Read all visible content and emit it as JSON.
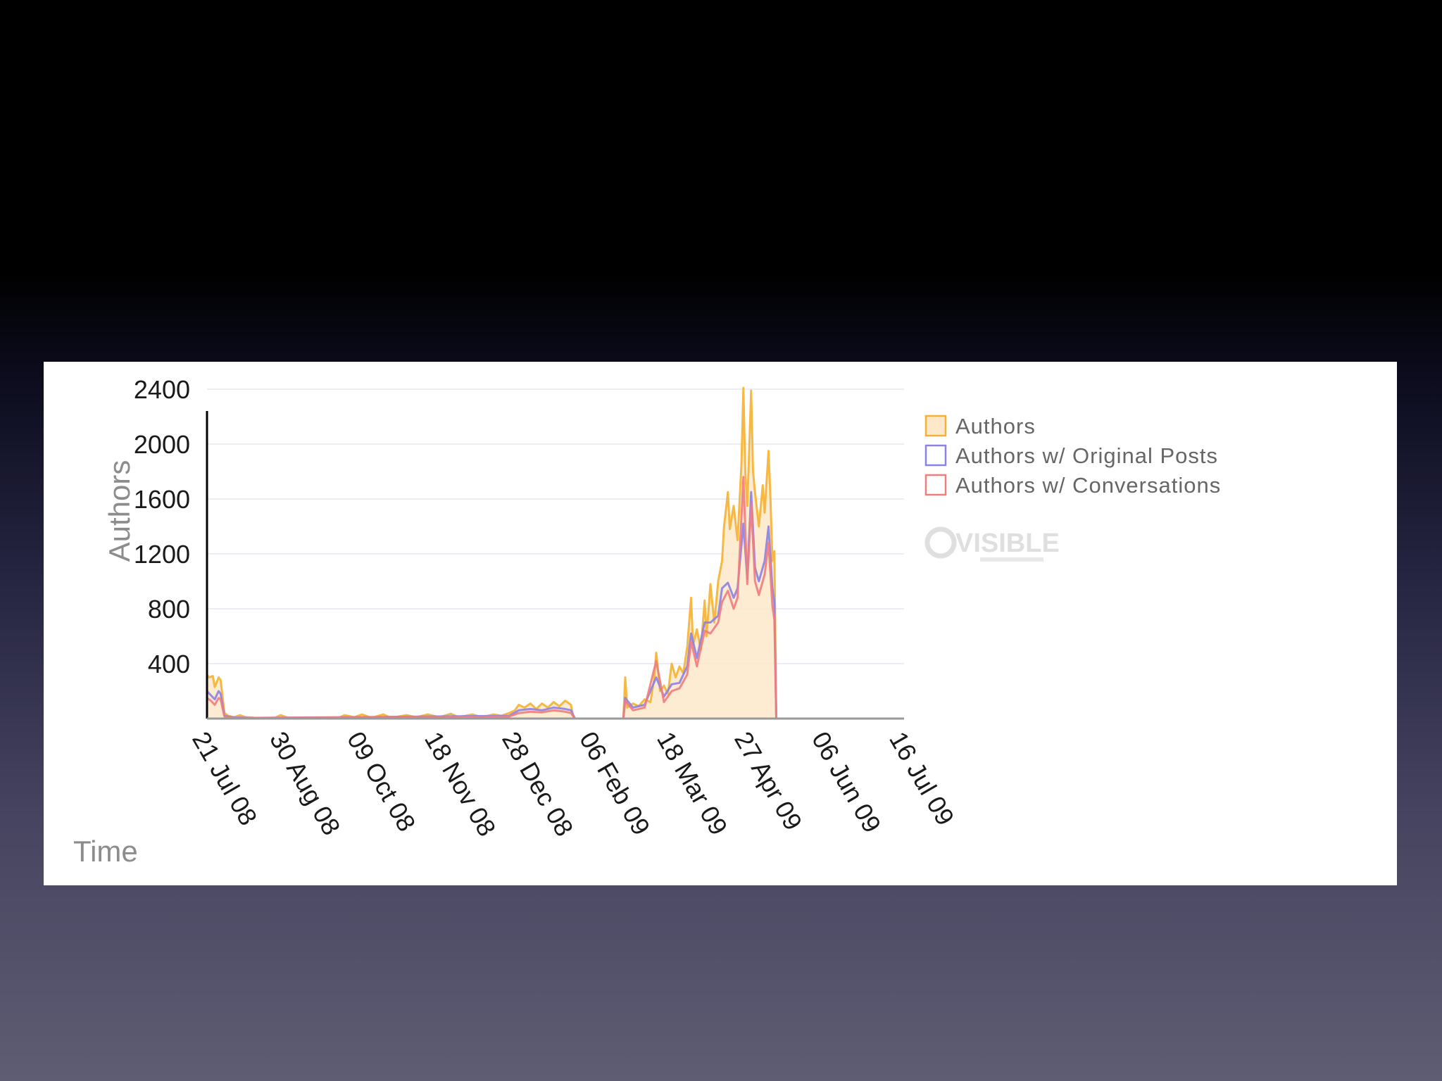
{
  "colors": {
    "authors": "#f5b133",
    "original_posts": "#8b82e8",
    "conversations": "#ef7d7d",
    "area_fill": "#fde9c9",
    "grid": "#ececf4",
    "axis": "#000000"
  },
  "logo": {
    "text": "VISIBLE",
    "icon": "at-sign-icon"
  },
  "chart_data": {
    "type": "line",
    "title": "",
    "xlabel": "Time",
    "ylabel": "Authors",
    "ylim": [
      0,
      2600
    ],
    "yticks": [
      400,
      800,
      1200,
      1600,
      2000,
      2400
    ],
    "xlim": [
      "2008-07-21",
      "2009-07-16"
    ],
    "xticks": [
      {
        "date": "2008-07-21",
        "label": "21 Jul 08"
      },
      {
        "date": "2008-08-30",
        "label": "30 Aug 08"
      },
      {
        "date": "2008-10-09",
        "label": "09 Oct 08"
      },
      {
        "date": "2008-11-18",
        "label": "18 Nov 08"
      },
      {
        "date": "2008-12-28",
        "label": "28 Dec 08"
      },
      {
        "date": "2009-02-06",
        "label": "06 Feb 09"
      },
      {
        "date": "2009-03-18",
        "label": "18 Mar 09"
      },
      {
        "date": "2009-04-27",
        "label": "27 Apr 09"
      },
      {
        "date": "2009-06-06",
        "label": "06 Jun 09"
      },
      {
        "date": "2009-07-16",
        "label": "16 Jul 09"
      }
    ],
    "grid": true,
    "legend_position": "right",
    "series": [
      {
        "name": "Authors",
        "color_key": "authors",
        "area": true,
        "points": [
          [
            "2008-07-21",
            320
          ],
          [
            "2008-07-22",
            300
          ],
          [
            "2008-07-24",
            310
          ],
          [
            "2008-07-25",
            230
          ],
          [
            "2008-07-27",
            300
          ],
          [
            "2008-07-28",
            280
          ],
          [
            "2008-07-30",
            40
          ],
          [
            "2008-08-01",
            20
          ],
          [
            "2008-08-04",
            10
          ],
          [
            "2008-08-07",
            25
          ],
          [
            "2008-08-10",
            10
          ],
          [
            "2008-08-15",
            5
          ],
          [
            "2008-08-25",
            5
          ],
          [
            "2008-08-28",
            25
          ],
          [
            "2008-09-01",
            5
          ],
          [
            "2008-09-15",
            5
          ],
          [
            "2008-09-27",
            5
          ],
          [
            "2008-09-30",
            25
          ],
          [
            "2008-10-05",
            10
          ],
          [
            "2008-10-09",
            30
          ],
          [
            "2008-10-14",
            5
          ],
          [
            "2008-10-20",
            30
          ],
          [
            "2008-10-24",
            5
          ],
          [
            "2008-11-01",
            25
          ],
          [
            "2008-11-06",
            10
          ],
          [
            "2008-11-12",
            30
          ],
          [
            "2008-11-18",
            10
          ],
          [
            "2008-11-24",
            35
          ],
          [
            "2008-11-28",
            10
          ],
          [
            "2008-12-05",
            30
          ],
          [
            "2008-12-10",
            10
          ],
          [
            "2008-12-16",
            30
          ],
          [
            "2008-12-20",
            20
          ],
          [
            "2008-12-24",
            40
          ],
          [
            "2008-12-27",
            60
          ],
          [
            "2008-12-29",
            100
          ],
          [
            "2009-01-01",
            80
          ],
          [
            "2009-01-04",
            110
          ],
          [
            "2009-01-07",
            70
          ],
          [
            "2009-01-10",
            110
          ],
          [
            "2009-01-13",
            80
          ],
          [
            "2009-01-16",
            120
          ],
          [
            "2009-01-19",
            90
          ],
          [
            "2009-01-22",
            130
          ],
          [
            "2009-01-25",
            100
          ],
          [
            "2009-01-26",
            20
          ],
          [
            "2009-01-27",
            0
          ],
          [
            "2009-02-21",
            0
          ],
          [
            "2009-02-22",
            300
          ],
          [
            "2009-02-23",
            80
          ],
          [
            "2009-02-26",
            110
          ],
          [
            "2009-03-01",
            90
          ],
          [
            "2009-03-04",
            140
          ],
          [
            "2009-03-07",
            120
          ],
          [
            "2009-03-09",
            300
          ],
          [
            "2009-03-10",
            480
          ],
          [
            "2009-03-12",
            200
          ],
          [
            "2009-03-14",
            240
          ],
          [
            "2009-03-16",
            180
          ],
          [
            "2009-03-18",
            400
          ],
          [
            "2009-03-20",
            300
          ],
          [
            "2009-03-22",
            380
          ],
          [
            "2009-03-24",
            330
          ],
          [
            "2009-03-26",
            520
          ],
          [
            "2009-03-28",
            880
          ],
          [
            "2009-03-29",
            540
          ],
          [
            "2009-03-31",
            650
          ],
          [
            "2009-04-02",
            500
          ],
          [
            "2009-04-04",
            860
          ],
          [
            "2009-04-05",
            600
          ],
          [
            "2009-04-07",
            980
          ],
          [
            "2009-04-09",
            700
          ],
          [
            "2009-04-11",
            1000
          ],
          [
            "2009-04-13",
            1150
          ],
          [
            "2009-04-14",
            1400
          ],
          [
            "2009-04-16",
            1650
          ],
          [
            "2009-04-17",
            1380
          ],
          [
            "2009-04-19",
            1550
          ],
          [
            "2009-04-21",
            1300
          ],
          [
            "2009-04-23",
            1850
          ],
          [
            "2009-04-24",
            2410
          ],
          [
            "2009-04-25",
            1800
          ],
          [
            "2009-04-26",
            1550
          ],
          [
            "2009-04-27",
            1950
          ],
          [
            "2009-04-28",
            2390
          ],
          [
            "2009-04-29",
            1800
          ],
          [
            "2009-04-30",
            1650
          ],
          [
            "2009-05-02",
            1400
          ],
          [
            "2009-05-04",
            1700
          ],
          [
            "2009-05-05",
            1500
          ],
          [
            "2009-05-07",
            1950
          ],
          [
            "2009-05-08",
            1600
          ],
          [
            "2009-05-09",
            1150
          ],
          [
            "2009-05-10",
            1220
          ],
          [
            "2009-05-11",
            0
          ]
        ]
      },
      {
        "name": "Authors w/ Original Posts",
        "color_key": "original_posts",
        "area": false,
        "points": [
          [
            "2008-07-21",
            200
          ],
          [
            "2008-07-23",
            170
          ],
          [
            "2008-07-25",
            140
          ],
          [
            "2008-07-27",
            200
          ],
          [
            "2008-07-28",
            180
          ],
          [
            "2008-07-30",
            20
          ],
          [
            "2008-08-03",
            10
          ],
          [
            "2008-08-15",
            5
          ],
          [
            "2008-09-30",
            10
          ],
          [
            "2008-11-12",
            15
          ],
          [
            "2008-12-24",
            20
          ],
          [
            "2008-12-29",
            60
          ],
          [
            "2009-01-04",
            70
          ],
          [
            "2009-01-10",
            60
          ],
          [
            "2009-01-16",
            80
          ],
          [
            "2009-01-22",
            70
          ],
          [
            "2009-01-25",
            60
          ],
          [
            "2009-01-27",
            0
          ],
          [
            "2009-02-21",
            0
          ],
          [
            "2009-02-22",
            150
          ],
          [
            "2009-02-26",
            80
          ],
          [
            "2009-03-04",
            100
          ],
          [
            "2009-03-10",
            300
          ],
          [
            "2009-03-14",
            160
          ],
          [
            "2009-03-18",
            250
          ],
          [
            "2009-03-22",
            260
          ],
          [
            "2009-03-26",
            380
          ],
          [
            "2009-03-28",
            620
          ],
          [
            "2009-03-31",
            440
          ],
          [
            "2009-04-04",
            700
          ],
          [
            "2009-04-07",
            700
          ],
          [
            "2009-04-11",
            750
          ],
          [
            "2009-04-13",
            950
          ],
          [
            "2009-04-16",
            990
          ],
          [
            "2009-04-19",
            880
          ],
          [
            "2009-04-21",
            950
          ],
          [
            "2009-04-24",
            1420
          ],
          [
            "2009-04-26",
            1020
          ],
          [
            "2009-04-28",
            1650
          ],
          [
            "2009-04-30",
            1100
          ],
          [
            "2009-05-02",
            1000
          ],
          [
            "2009-05-05",
            1150
          ],
          [
            "2009-05-07",
            1400
          ],
          [
            "2009-05-09",
            950
          ],
          [
            "2009-05-10",
            850
          ],
          [
            "2009-05-11",
            0
          ]
        ]
      },
      {
        "name": "Authors w/ Conversations",
        "color_key": "conversations",
        "area": false,
        "points": [
          [
            "2008-07-21",
            150
          ],
          [
            "2008-07-23",
            130
          ],
          [
            "2008-07-25",
            100
          ],
          [
            "2008-07-27",
            150
          ],
          [
            "2008-07-28",
            140
          ],
          [
            "2008-07-30",
            15
          ],
          [
            "2008-08-03",
            5
          ],
          [
            "2008-08-15",
            5
          ],
          [
            "2008-09-30",
            8
          ],
          [
            "2008-11-12",
            10
          ],
          [
            "2008-12-24",
            15
          ],
          [
            "2008-12-29",
            40
          ],
          [
            "2009-01-04",
            50
          ],
          [
            "2009-01-10",
            45
          ],
          [
            "2009-01-16",
            60
          ],
          [
            "2009-01-22",
            50
          ],
          [
            "2009-01-25",
            40
          ],
          [
            "2009-01-27",
            0
          ],
          [
            "2009-02-21",
            0
          ],
          [
            "2009-02-22",
            130
          ],
          [
            "2009-02-26",
            60
          ],
          [
            "2009-03-04",
            80
          ],
          [
            "2009-03-10",
            420
          ],
          [
            "2009-03-14",
            120
          ],
          [
            "2009-03-18",
            200
          ],
          [
            "2009-03-22",
            220
          ],
          [
            "2009-03-26",
            320
          ],
          [
            "2009-03-28",
            560
          ],
          [
            "2009-03-31",
            380
          ],
          [
            "2009-04-04",
            640
          ],
          [
            "2009-04-07",
            620
          ],
          [
            "2009-04-11",
            700
          ],
          [
            "2009-04-13",
            850
          ],
          [
            "2009-04-16",
            930
          ],
          [
            "2009-04-19",
            800
          ],
          [
            "2009-04-21",
            880
          ],
          [
            "2009-04-24",
            1760
          ],
          [
            "2009-04-26",
            980
          ],
          [
            "2009-04-28",
            1560
          ],
          [
            "2009-04-30",
            1000
          ],
          [
            "2009-05-02",
            900
          ],
          [
            "2009-05-05",
            1050
          ],
          [
            "2009-05-07",
            1280
          ],
          [
            "2009-05-09",
            820
          ],
          [
            "2009-05-10",
            720
          ],
          [
            "2009-05-11",
            0
          ]
        ]
      }
    ]
  }
}
